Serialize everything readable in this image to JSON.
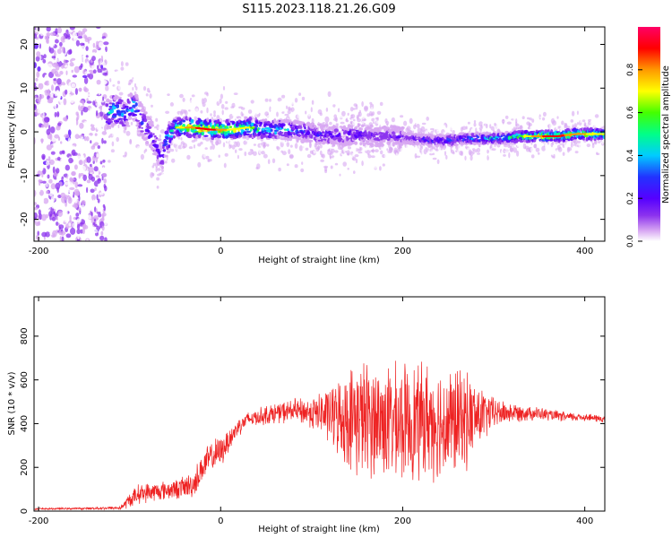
{
  "title": "S115.2023.118.21.26.G09",
  "colors": {
    "snr_line": "#ee2222",
    "colormap": [
      "#ffffff",
      "#d7a6f2",
      "#8c33ee",
      "#5500ff",
      "#2233ff",
      "#00ccff",
      "#00ff88",
      "#44ff00",
      "#ffff00",
      "#ff9900",
      "#ff0000",
      "#ff0066"
    ]
  },
  "chart_data": [
    {
      "type": "heatmap",
      "xlabel": "Height of straight line (km)",
      "ylabel": "Frequency (Hz)",
      "xlim": [
        -205,
        422
      ],
      "ylim": [
        -25,
        24
      ],
      "xticks": [
        -200,
        0,
        200,
        400
      ],
      "yticks": [
        -20,
        -10,
        0,
        10,
        20
      ],
      "xtick_labels": [
        "-200",
        "0",
        "200",
        "400"
      ],
      "ytick_labels": [
        "-20",
        "-10",
        "0",
        "10",
        "20"
      ],
      "colorbar": {
        "label": "Normalized spectral amplitude",
        "range": [
          0,
          1
        ],
        "ticks": [
          0,
          0.2,
          0.4,
          0.6,
          0.8
        ],
        "tick_labels": [
          "0.0",
          "0.2",
          "0.4",
          "0.6",
          "0.8"
        ]
      },
      "ridge": {
        "x": [
          -125,
          -115,
          -105,
          -95,
          -85,
          -75,
          -65,
          -60,
          -50,
          -30,
          -10,
          10,
          30,
          50,
          70,
          90,
          110,
          130,
          150,
          170,
          190,
          210,
          230,
          250,
          270,
          290,
          310,
          330,
          350,
          370,
          390,
          410,
          422
        ],
        "frequency": [
          4,
          5,
          4,
          6,
          2,
          -1,
          -6,
          -2,
          1,
          1,
          0.5,
          0.5,
          1,
          0.5,
          0.5,
          0,
          -0.5,
          -1,
          -0.5,
          -1,
          -1,
          -1.5,
          -2,
          -2,
          -1.5,
          -1.5,
          -1.5,
          -1,
          -1,
          -1,
          -0.5,
          -0.5,
          -0.5
        ],
        "peak_amplitude": [
          0.5,
          0.6,
          0.45,
          0.55,
          0.4,
          0.35,
          0.35,
          0.5,
          0.7,
          0.9,
          0.95,
          0.8,
          0.75,
          0.6,
          0.55,
          0.4,
          0.4,
          0.35,
          0.35,
          0.3,
          0.3,
          0.35,
          0.4,
          0.45,
          0.5,
          0.55,
          0.6,
          0.7,
          0.9,
          0.95,
          0.85,
          0.8,
          0.8
        ]
      },
      "noise_region_x": [
        -205,
        -125
      ]
    },
    {
      "type": "line",
      "xlabel": "Height of straight line (km)",
      "ylabel": "SNR (10 * v/v)",
      "xlim": [
        -205,
        422
      ],
      "ylim": [
        0,
        980
      ],
      "xticks": [
        -200,
        0,
        200,
        400
      ],
      "yticks": [
        0,
        200,
        400,
        600,
        800
      ],
      "xtick_labels": [
        "-200",
        "0",
        "200",
        "400"
      ],
      "ytick_labels": [
        "0",
        "200",
        "400",
        "600",
        "800"
      ],
      "series": [
        {
          "x": [
            -205,
            -150,
            -110,
            -100,
            -90,
            -70,
            -50,
            -30,
            -20,
            -10,
            0,
            10,
            20,
            30,
            50,
            80,
            100,
            120,
            140,
            150,
            170,
            190,
            210,
            230,
            250,
            270,
            290,
            300,
            320,
            340,
            360,
            380,
            400,
            422
          ],
          "mean": [
            10,
            12,
            15,
            50,
            80,
            90,
            100,
            120,
            200,
            250,
            270,
            330,
            390,
            420,
            440,
            460,
            450,
            440,
            420,
            430,
            420,
            400,
            410,
            420,
            400,
            420,
            440,
            450,
            450,
            450,
            440,
            430,
            430,
            420
          ],
          "amp": [
            5,
            5,
            10,
            40,
            50,
            50,
            50,
            70,
            80,
            80,
            80,
            60,
            50,
            40,
            50,
            60,
            80,
            150,
            250,
            300,
            300,
            300,
            300,
            300,
            300,
            250,
            130,
            80,
            50,
            40,
            30,
            25,
            20,
            20
          ]
        }
      ]
    }
  ]
}
